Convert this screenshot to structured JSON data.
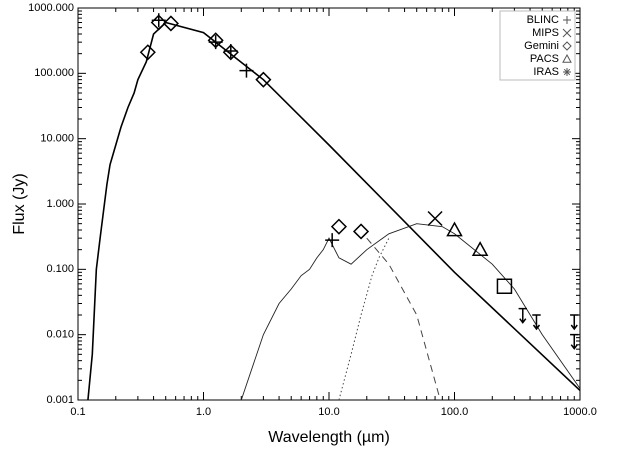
{
  "chart_data": {
    "type": "scatter",
    "xlabel": "Wavelength (µm)",
    "ylabel": "Flux (Jy)",
    "xscale": "log",
    "yscale": "log",
    "xlim": [
      0.1,
      1000
    ],
    "ylim": [
      0.001,
      1000
    ],
    "xticks": [
      0.1,
      {
        "value": 1,
        "label": "1.0"
      },
      {
        "value": 10,
        "label": "10.0"
      },
      {
        "value": 100,
        "label": "100.0"
      },
      {
        "value": 1000,
        "label": "1000.0"
      }
    ],
    "yticks": [
      0.001,
      {
        "value": 0.01,
        "label": "0.010"
      },
      {
        "value": 0.1,
        "label": "0.100"
      },
      {
        "value": 1,
        "label": "1.000"
      },
      {
        "value": 10,
        "label": "10.000"
      },
      {
        "value": 100,
        "label": "100.000"
      },
      {
        "value": 1000,
        "label": "1000.000"
      }
    ],
    "legend": "upper right",
    "series": [
      {
        "style": "line",
        "color": "#000000",
        "width": 1.6,
        "x": [
          0.12,
          0.13,
          0.14,
          0.15,
          0.16,
          0.17,
          0.18,
          0.2,
          0.22,
          0.25,
          0.28,
          0.3,
          0.35,
          0.4,
          0.5,
          1,
          3,
          10,
          100,
          1000
        ],
        "y": [
          0.001,
          0.005,
          0.1,
          0.3,
          0.8,
          2,
          4,
          8,
          15,
          30,
          50,
          80,
          150,
          400,
          600,
          420,
          80,
          8,
          0.09,
          0.0014
        ]
      },
      {
        "style": "line",
        "color": "#222222",
        "width": 0.9,
        "x": [
          2,
          3,
          4,
          5,
          6,
          7,
          8,
          9,
          10,
          12,
          15,
          20,
          30,
          50,
          80,
          100,
          200,
          300,
          500,
          1000
        ],
        "y": [
          0.001,
          0.01,
          0.03,
          0.05,
          0.08,
          0.1,
          0.15,
          0.2,
          0.3,
          0.15,
          0.12,
          0.2,
          0.35,
          0.5,
          0.45,
          0.35,
          0.12,
          0.05,
          0.01,
          0.0015
        ]
      },
      {
        "style": "dot",
        "color": "#444444",
        "width": 1,
        "x": [
          12,
          15,
          18,
          22,
          25,
          30
        ],
        "y": [
          0.001,
          0.005,
          0.02,
          0.08,
          0.15,
          0.3
        ]
      },
      {
        "style": "dash",
        "color": "#444444",
        "width": 1,
        "x": [
          20,
          30,
          50,
          77
        ],
        "y": [
          0.3,
          0.12,
          0.02,
          0.001
        ]
      },
      {
        "name": "BLINC",
        "marker": "plus",
        "color": "#000000",
        "x": [
          0.44,
          1.25,
          1.65,
          2.2,
          10.6
        ],
        "y": [
          650,
          300,
          220,
          110,
          0.28
        ]
      },
      {
        "name": "MIPS",
        "marker": "x",
        "color": "#000000",
        "x": [
          70
        ],
        "y": [
          0.6
        ]
      },
      {
        "name": "Gemini",
        "marker": "diamond",
        "color": "#000000",
        "x": [
          0.36,
          0.44,
          0.55,
          1.25,
          1.65,
          3,
          12,
          18
        ],
        "y": [
          210,
          600,
          580,
          320,
          210,
          80,
          0.45,
          0.38
        ]
      },
      {
        "name": "PACS",
        "marker": "triangle",
        "color": "#000000",
        "x": [
          100,
          160
        ],
        "y": [
          0.4,
          0.2
        ]
      },
      {
        "name": "IRAS",
        "marker": "asterisk",
        "color": "#000000",
        "x": [],
        "y": []
      },
      {
        "marker": "square",
        "color": "#000000",
        "x": [
          250
        ],
        "y": [
          0.055
        ]
      },
      {
        "marker": "arrow",
        "color": "#000000",
        "x": [
          350,
          450,
          900,
          900
        ],
        "y": [
          0.025,
          0.02,
          0.02,
          0.01
        ]
      }
    ]
  }
}
